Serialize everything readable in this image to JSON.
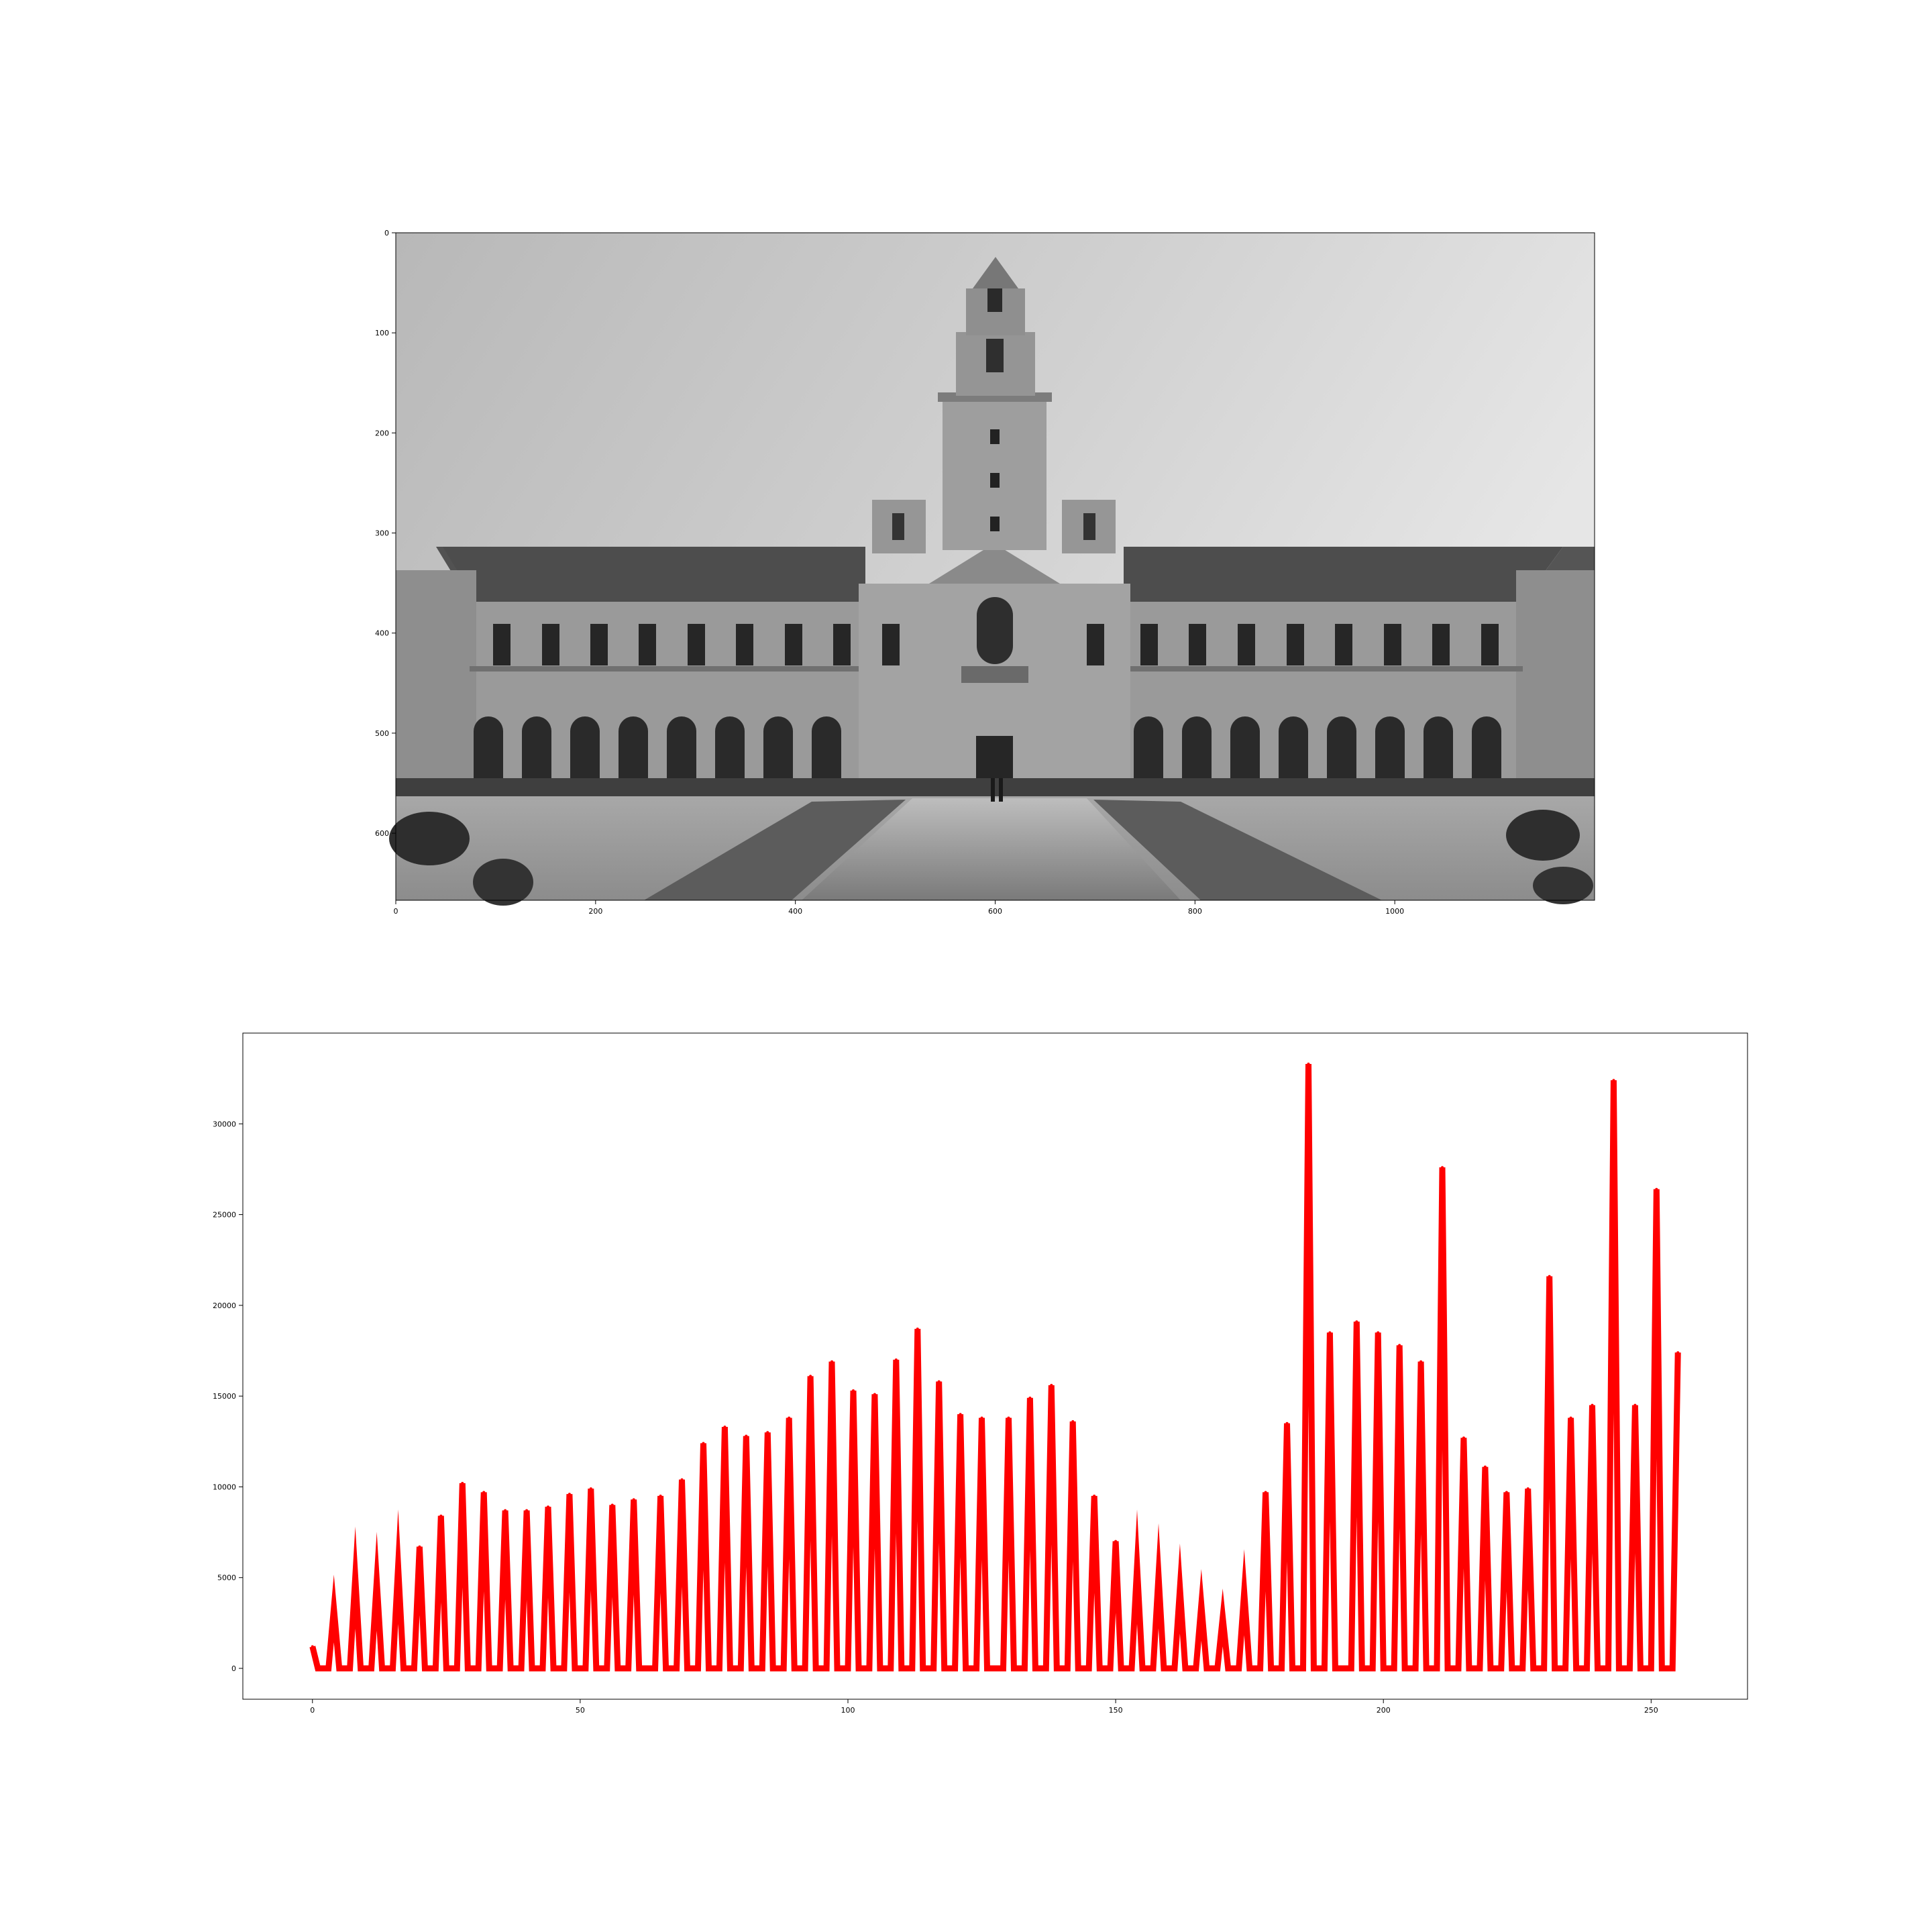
{
  "figure": {
    "background": "#ffffff",
    "axis_color": "#000000"
  },
  "image_panel": {
    "content": "grayscale photograph",
    "x_ticks": [
      0,
      200,
      400,
      600,
      800,
      1000
    ],
    "y_ticks": [
      0,
      100,
      200,
      300,
      400,
      500,
      600
    ],
    "xlim": [
      0,
      1200
    ],
    "ylim": [
      0,
      667
    ]
  },
  "chart_data": {
    "type": "line",
    "title": "",
    "xlabel": "",
    "ylabel": "",
    "xlim": [
      -13,
      268
    ],
    "ylim": [
      -1700,
      35000
    ],
    "x_ticks": [
      0,
      50,
      100,
      150,
      200,
      250
    ],
    "y_ticks": [
      0,
      5000,
      10000,
      15000,
      20000,
      25000,
      30000
    ],
    "grid": false,
    "legend": "none",
    "series": [
      {
        "color": "#ff0000",
        "peaks": [
          [
            0,
            1200
          ],
          [
            4,
            3300
          ],
          [
            8,
            5000
          ],
          [
            12,
            4800
          ],
          [
            16,
            5600
          ],
          [
            20,
            6700
          ],
          [
            24,
            8400
          ],
          [
            28,
            10200
          ],
          [
            32,
            9700
          ],
          [
            36,
            8700
          ],
          [
            40,
            8700
          ],
          [
            44,
            8900
          ],
          [
            48,
            9600
          ],
          [
            52,
            9900
          ],
          [
            56,
            9000
          ],
          [
            60,
            9300
          ],
          [
            65,
            9500
          ],
          [
            69,
            10400
          ],
          [
            73,
            12400
          ],
          [
            77,
            13300
          ],
          [
            81,
            12800
          ],
          [
            85,
            13000
          ],
          [
            89,
            13800
          ],
          [
            93,
            16100
          ],
          [
            97,
            16900
          ],
          [
            101,
            15300
          ],
          [
            105,
            15100
          ],
          [
            109,
            17000
          ],
          [
            113,
            18700
          ],
          [
            117,
            15800
          ],
          [
            121,
            14000
          ],
          [
            125,
            13800
          ],
          [
            130,
            13800
          ],
          [
            134,
            14900
          ],
          [
            138,
            15600
          ],
          [
            142,
            13600
          ],
          [
            146,
            9500
          ],
          [
            150,
            7000
          ],
          [
            154,
            5600
          ],
          [
            158,
            5100
          ],
          [
            162,
            4400
          ],
          [
            166,
            3500
          ],
          [
            170,
            2800
          ],
          [
            174,
            4200
          ],
          [
            178,
            9700
          ],
          [
            182,
            13500
          ],
          [
            186,
            33300
          ],
          [
            190,
            18500
          ],
          [
            195,
            19100
          ],
          [
            199,
            18500
          ],
          [
            203,
            17800
          ],
          [
            207,
            16900
          ],
          [
            211,
            27600
          ],
          [
            215,
            12700
          ],
          [
            219,
            11100
          ],
          [
            223,
            9700
          ],
          [
            227,
            9900
          ],
          [
            231,
            21600
          ],
          [
            235,
            13800
          ],
          [
            239,
            14500
          ],
          [
            243,
            32400
          ],
          [
            247,
            14500
          ],
          [
            251,
            26400
          ],
          [
            255,
            17400
          ]
        ]
      }
    ]
  }
}
